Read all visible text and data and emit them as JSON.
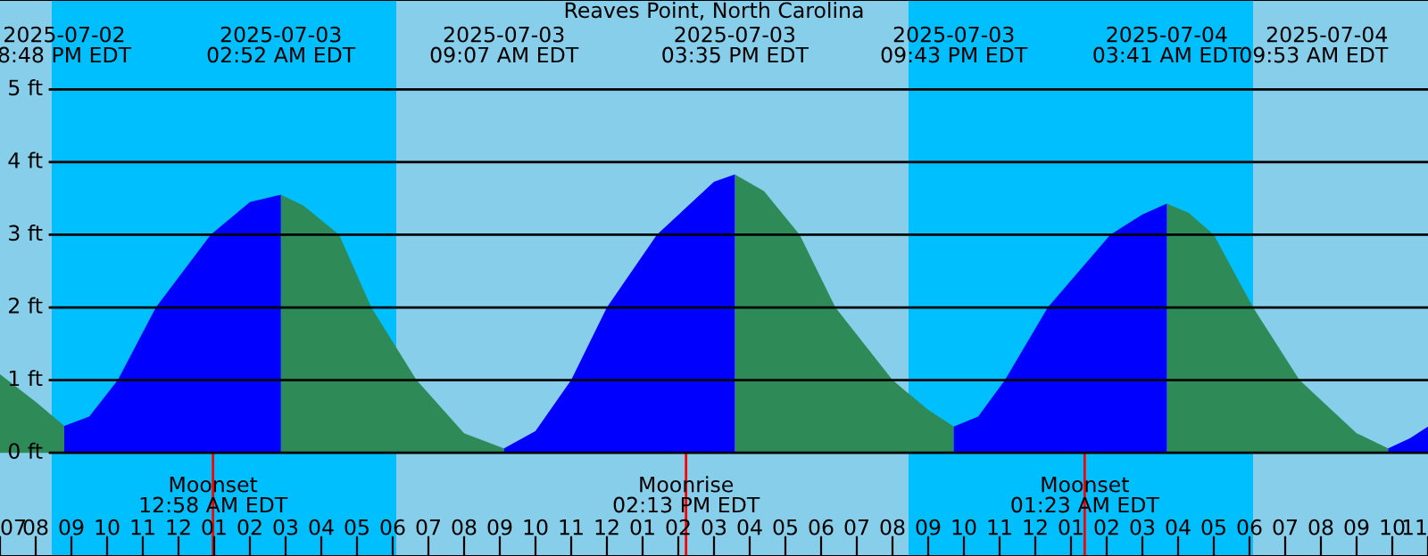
{
  "chart_data": {
    "type": "area",
    "title": "Reaves Point, North Carolina",
    "xlim": [
      "2025-07-02T19:00",
      "2025-07-04T11:00"
    ],
    "ylim": [
      -1.42,
      6.23
    ],
    "xticks": [
      {
        "value": "2025-07-02T19:00",
        "label": "07"
      },
      {
        "value": "2025-07-02T20:00",
        "label": "08"
      },
      {
        "value": "2025-07-02T21:00",
        "label": "09"
      },
      {
        "value": "2025-07-02T22:00",
        "label": "10"
      },
      {
        "value": "2025-07-02T23:00",
        "label": "11"
      },
      {
        "value": "2025-07-03T00:00",
        "label": "12"
      },
      {
        "value": "2025-07-03T01:00",
        "label": "01"
      },
      {
        "value": "2025-07-03T02:00",
        "label": "02"
      },
      {
        "value": "2025-07-03T03:00",
        "label": "03"
      },
      {
        "value": "2025-07-03T04:00",
        "label": "04"
      },
      {
        "value": "2025-07-03T05:00",
        "label": "05"
      },
      {
        "value": "2025-07-03T06:00",
        "label": "06"
      },
      {
        "value": "2025-07-03T07:00",
        "label": "07"
      },
      {
        "value": "2025-07-03T08:00",
        "label": "08"
      },
      {
        "value": "2025-07-03T09:00",
        "label": "09"
      },
      {
        "value": "2025-07-03T10:00",
        "label": "10"
      },
      {
        "value": "2025-07-03T11:00",
        "label": "11"
      },
      {
        "value": "2025-07-03T12:00",
        "label": "12"
      },
      {
        "value": "2025-07-03T13:00",
        "label": "01"
      },
      {
        "value": "2025-07-03T14:00",
        "label": "02"
      },
      {
        "value": "2025-07-03T15:00",
        "label": "03"
      },
      {
        "value": "2025-07-03T16:00",
        "label": "04"
      },
      {
        "value": "2025-07-03T17:00",
        "label": "05"
      },
      {
        "value": "2025-07-03T18:00",
        "label": "06"
      },
      {
        "value": "2025-07-03T19:00",
        "label": "07"
      },
      {
        "value": "2025-07-03T20:00",
        "label": "08"
      },
      {
        "value": "2025-07-03T21:00",
        "label": "09"
      },
      {
        "value": "2025-07-03T22:00",
        "label": "10"
      },
      {
        "value": "2025-07-03T23:00",
        "label": "11"
      },
      {
        "value": "2025-07-04T00:00",
        "label": "12"
      },
      {
        "value": "2025-07-04T01:00",
        "label": "01"
      },
      {
        "value": "2025-07-04T02:00",
        "label": "02"
      },
      {
        "value": "2025-07-04T03:00",
        "label": "03"
      },
      {
        "value": "2025-07-04T04:00",
        "label": "04"
      },
      {
        "value": "2025-07-04T05:00",
        "label": "05"
      },
      {
        "value": "2025-07-04T06:00",
        "label": "06"
      },
      {
        "value": "2025-07-04T07:00",
        "label": "07"
      },
      {
        "value": "2025-07-04T08:00",
        "label": "08"
      },
      {
        "value": "2025-07-04T09:00",
        "label": "09"
      },
      {
        "value": "2025-07-04T10:00",
        "label": "10"
      },
      {
        "value": "2025-07-04T11:00",
        "label": "11"
      }
    ],
    "x2lim": [
      "2025-07-02T19:00",
      "2025-07-04T11:00"
    ],
    "x2ticks": [
      {
        "value": "2025-07-02T20:48",
        "label": "2025-07-02\n8:48 PM EDT"
      },
      {
        "value": "2025-07-03T02:52",
        "label": "2025-07-03\n02:52 AM EDT"
      },
      {
        "value": "2025-07-03T09:07",
        "label": "2025-07-03\n09:07 AM EDT"
      },
      {
        "value": "2025-07-03T15:35",
        "label": "2025-07-03\n03:35 PM EDT"
      },
      {
        "value": "2025-07-03T21:43",
        "label": "2025-07-03\n09:43 PM EDT"
      },
      {
        "value": "2025-07-04T03:41",
        "label": "2025-07-04\n03:41 AM EDT"
      },
      {
        "value": "2025-07-04T09:53",
        "label": "2025-07-04\n09:53 AM EDT"
      }
    ],
    "yticks": [
      {
        "value": 0,
        "label": "0 ft"
      },
      {
        "value": 1,
        "label": "1 ft"
      },
      {
        "value": 2,
        "label": "2 ft"
      },
      {
        "value": 3,
        "label": "3 ft"
      },
      {
        "value": 4,
        "label": "4 ft"
      },
      {
        "value": 5,
        "label": "5 ft"
      }
    ],
    "grid": "y",
    "x": [
      "2025-07-02T19:00",
      "2025-07-02T20:00",
      "2025-07-02T20:48",
      "2025-07-02T21:30",
      "2025-07-02T22:18",
      "2025-07-02T23:22",
      "2025-07-03T00:54",
      "2025-07-03T02:00",
      "2025-07-03T02:52",
      "2025-07-03T03:30",
      "2025-07-03T04:30",
      "2025-07-03T05:24",
      "2025-07-03T06:40",
      "2025-07-03T08:00",
      "2025-07-03T09:07",
      "2025-07-03T10:00",
      "2025-07-03T11:00",
      "2025-07-03T12:00",
      "2025-07-03T13:24",
      "2025-07-03T15:00",
      "2025-07-03T15:35",
      "2025-07-03T16:24",
      "2025-07-03T17:24",
      "2025-07-03T18:24",
      "2025-07-03T20:00",
      "2025-07-03T21:00",
      "2025-07-03T21:43",
      "2025-07-03T22:24",
      "2025-07-03T23:09",
      "2025-07-04T00:21",
      "2025-07-04T02:06",
      "2025-07-04T03:00",
      "2025-07-04T03:41",
      "2025-07-04T04:18",
      "2025-07-04T05:00",
      "2025-07-04T06:06",
      "2025-07-04T07:24",
      "2025-07-04T09:00",
      "2025-07-04T09:53",
      "2025-07-04T10:30",
      "2025-07-04T11:00"
    ],
    "series": [
      {
        "color": "#2e8b57",
        "values": [
          1.08,
          0.7,
          0.37,
          null,
          null,
          null,
          null,
          null,
          3.55,
          3.4,
          3.0,
          2.0,
          1.0,
          0.27,
          0.06,
          null,
          null,
          null,
          null,
          null,
          3.83,
          3.6,
          3.0,
          2.0,
          1.0,
          0.59,
          0.36,
          null,
          null,
          null,
          null,
          null,
          3.43,
          3.3,
          3.0,
          2.0,
          1.0,
          0.27,
          0.06,
          null,
          null
        ]
      },
      {
        "color": "#0000ff",
        "values": [
          null,
          null,
          0.37,
          0.5,
          1.0,
          2.0,
          3.0,
          3.45,
          3.55,
          null,
          null,
          null,
          null,
          null,
          0.06,
          0.3,
          1.0,
          2.0,
          3.0,
          3.73,
          3.83,
          null,
          null,
          null,
          null,
          null,
          0.36,
          0.5,
          1.0,
          2.0,
          3.0,
          3.28,
          3.43,
          null,
          null,
          null,
          null,
          null,
          0.06,
          0.2,
          0.36
        ]
      }
    ],
    "bands": [
      {
        "axis": "x",
        "from": "2025-07-02T19:00",
        "to": "2025-07-02T20:27",
        "color": "#87ceeb"
      },
      {
        "axis": "x",
        "from": "2025-07-02T20:27",
        "to": "2025-07-03T06:06",
        "color": "#00bfff"
      },
      {
        "axis": "x",
        "from": "2025-07-03T06:06",
        "to": "2025-07-03T20:27",
        "color": "#87ceeb"
      },
      {
        "axis": "x",
        "from": "2025-07-03T20:27",
        "to": "2025-07-04T06:06",
        "color": "#00bfff"
      },
      {
        "axis": "x",
        "from": "2025-07-04T06:06",
        "to": "2025-07-04T11:00",
        "color": "#87ceeb"
      }
    ],
    "ref_lines": [
      {
        "axis": "x",
        "value": "2025-07-03T00:58",
        "label": "Moonset\n12:58 AM EDT",
        "color": "#ff0000"
      },
      {
        "axis": "x",
        "value": "2025-07-03T14:13",
        "label": "Moonrise\n02:13 PM EDT",
        "color": "#ff0000"
      },
      {
        "axis": "x",
        "value": "2025-07-04T01:23",
        "label": "Moonset\n01:23 AM EDT",
        "color": "#ff0000"
      }
    ]
  }
}
